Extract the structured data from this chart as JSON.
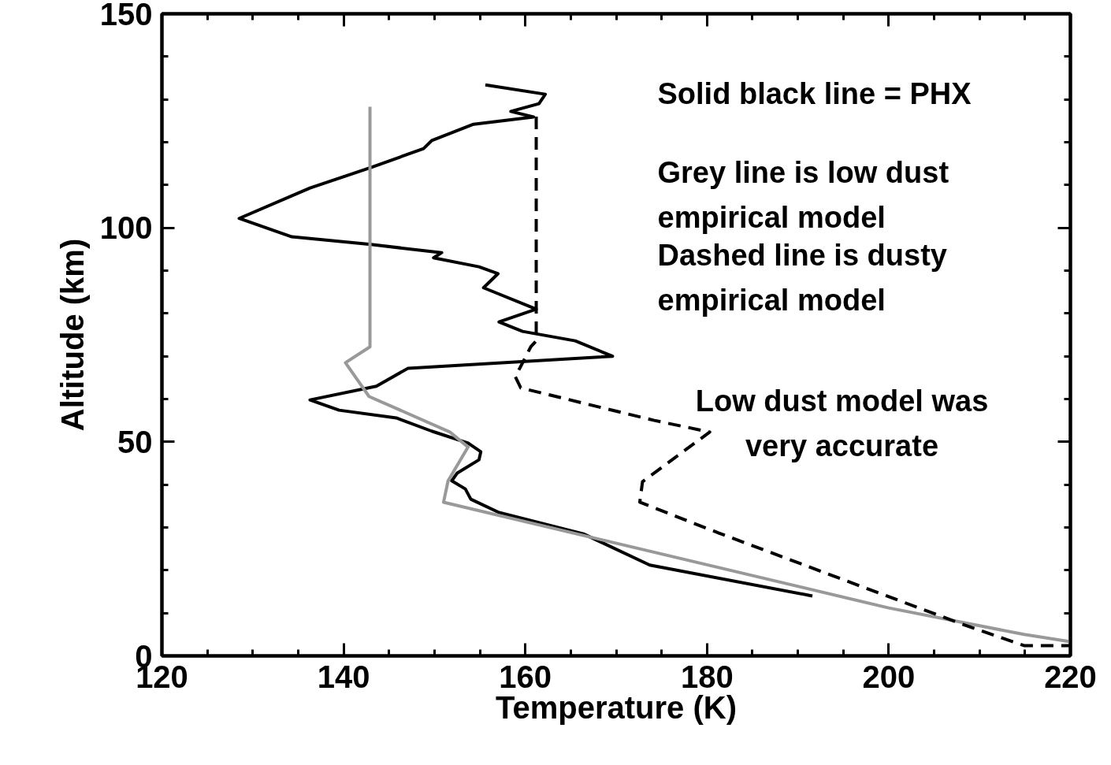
{
  "chart_data": {
    "type": "line",
    "xlabel": "Temperature (K)",
    "ylabel": "Altitude (km)",
    "xlim": [
      120,
      220
    ],
    "xticks": [
      120,
      140,
      160,
      180,
      200,
      220
    ],
    "ylim": [
      0,
      150
    ],
    "yticks": [
      0,
      50,
      100,
      150
    ],
    "grid": false,
    "marker": "none",
    "annotations": [
      "Solid black line = PHX",
      "Grey line is low dust\nempirical model",
      "Dashed line is dusty\nempirical model",
      "Low dust model was\nvery accurate"
    ],
    "series": [
      {
        "color": "#000000",
        "line_style": "solid",
        "x": [
          155.6,
          162.2,
          161.5,
          158.4,
          160.9,
          154.3,
          149.7,
          148.8,
          143,
          136.3,
          128.5,
          134.3,
          143,
          150.8,
          149.9,
          154.9,
          157,
          155.4,
          161.2,
          157.1,
          159.7,
          165.5,
          169.6,
          147.1,
          143.6,
          136.3,
          139.5,
          145.8,
          149.7,
          153.7,
          155.1,
          154.9,
          152.5,
          151.9,
          153.4,
          154,
          157.1,
          166.4,
          173.7,
          191.6
        ],
        "values": [
          133.4,
          131.2,
          129,
          127.2,
          125.9,
          124.2,
          120.4,
          118.5,
          114.1,
          109.3,
          102.2,
          97.9,
          96.1,
          94.2,
          93,
          90.9,
          89.3,
          86,
          81,
          78,
          75.8,
          73.6,
          70,
          67.2,
          63,
          59.8,
          57.4,
          55.6,
          52.5,
          49.7,
          47.7,
          45.8,
          42.7,
          40.9,
          39,
          36.6,
          33.5,
          28.5,
          21.2,
          14
        ]
      },
      {
        "color": "#999999",
        "line_style": "solid",
        "x": [
          142.9,
          142.9,
          140.2,
          142.8,
          151.7,
          153.7,
          151.5,
          151,
          200,
          214.9,
          220
        ],
        "values": [
          128.3,
          72.2,
          68.5,
          60.6,
          52.3,
          48.8,
          40.9,
          35.9,
          11.2,
          5,
          3.3
        ]
      },
      {
        "color": "#000000",
        "line_style": "dashed",
        "x": [
          161.2,
          161.2,
          160.6,
          158.9,
          159.5,
          174.2,
          180.3,
          172.9,
          172.6,
          181.3,
          208.1,
          214.9,
          220
        ],
        "values": [
          126,
          73.6,
          72.2,
          65.2,
          62.6,
          55,
          52.3,
          40.7,
          35.9,
          28.7,
          7.4,
          2.4,
          2.4
        ]
      }
    ]
  }
}
